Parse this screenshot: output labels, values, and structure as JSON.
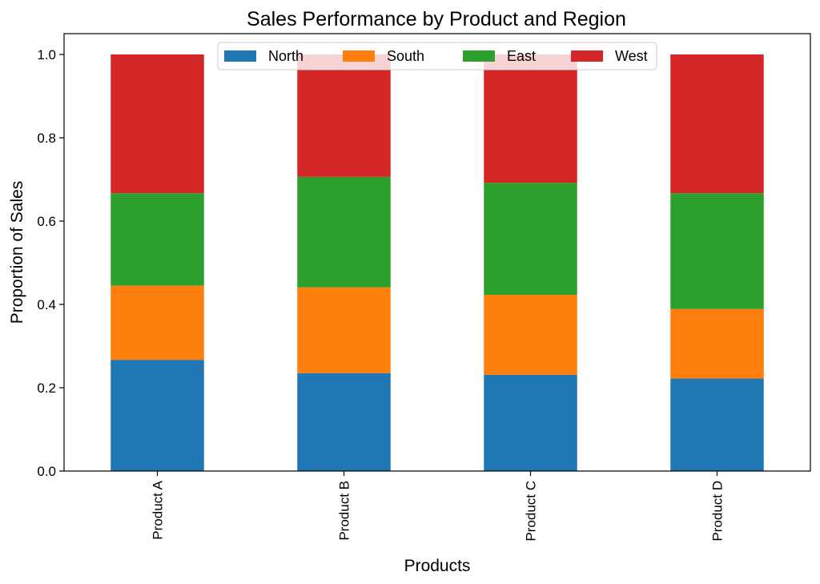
{
  "chart_data": {
    "type": "bar",
    "stacked": true,
    "title": "Sales Performance by Product and Region",
    "xlabel": "Products",
    "ylabel": "Proportion of Sales",
    "categories": [
      "Product A",
      "Product B",
      "Product C",
      "Product D"
    ],
    "ylim": [
      0,
      1.05
    ],
    "yticks": [
      "0.0",
      "0.2",
      "0.4",
      "0.6",
      "0.8",
      "1.0"
    ],
    "grid": false,
    "legend_position": "top-center",
    "series": [
      {
        "name": "North",
        "color": "#1f77b4",
        "values": [
          0.267,
          0.235,
          0.231,
          0.222
        ]
      },
      {
        "name": "South",
        "color": "#ff7f0e",
        "values": [
          0.178,
          0.206,
          0.192,
          0.167
        ]
      },
      {
        "name": "East",
        "color": "#2ca02c",
        "values": [
          0.222,
          0.265,
          0.269,
          0.278
        ]
      },
      {
        "name": "West",
        "color": "#d62728",
        "values": [
          0.333,
          0.294,
          0.308,
          0.333
        ]
      }
    ]
  }
}
